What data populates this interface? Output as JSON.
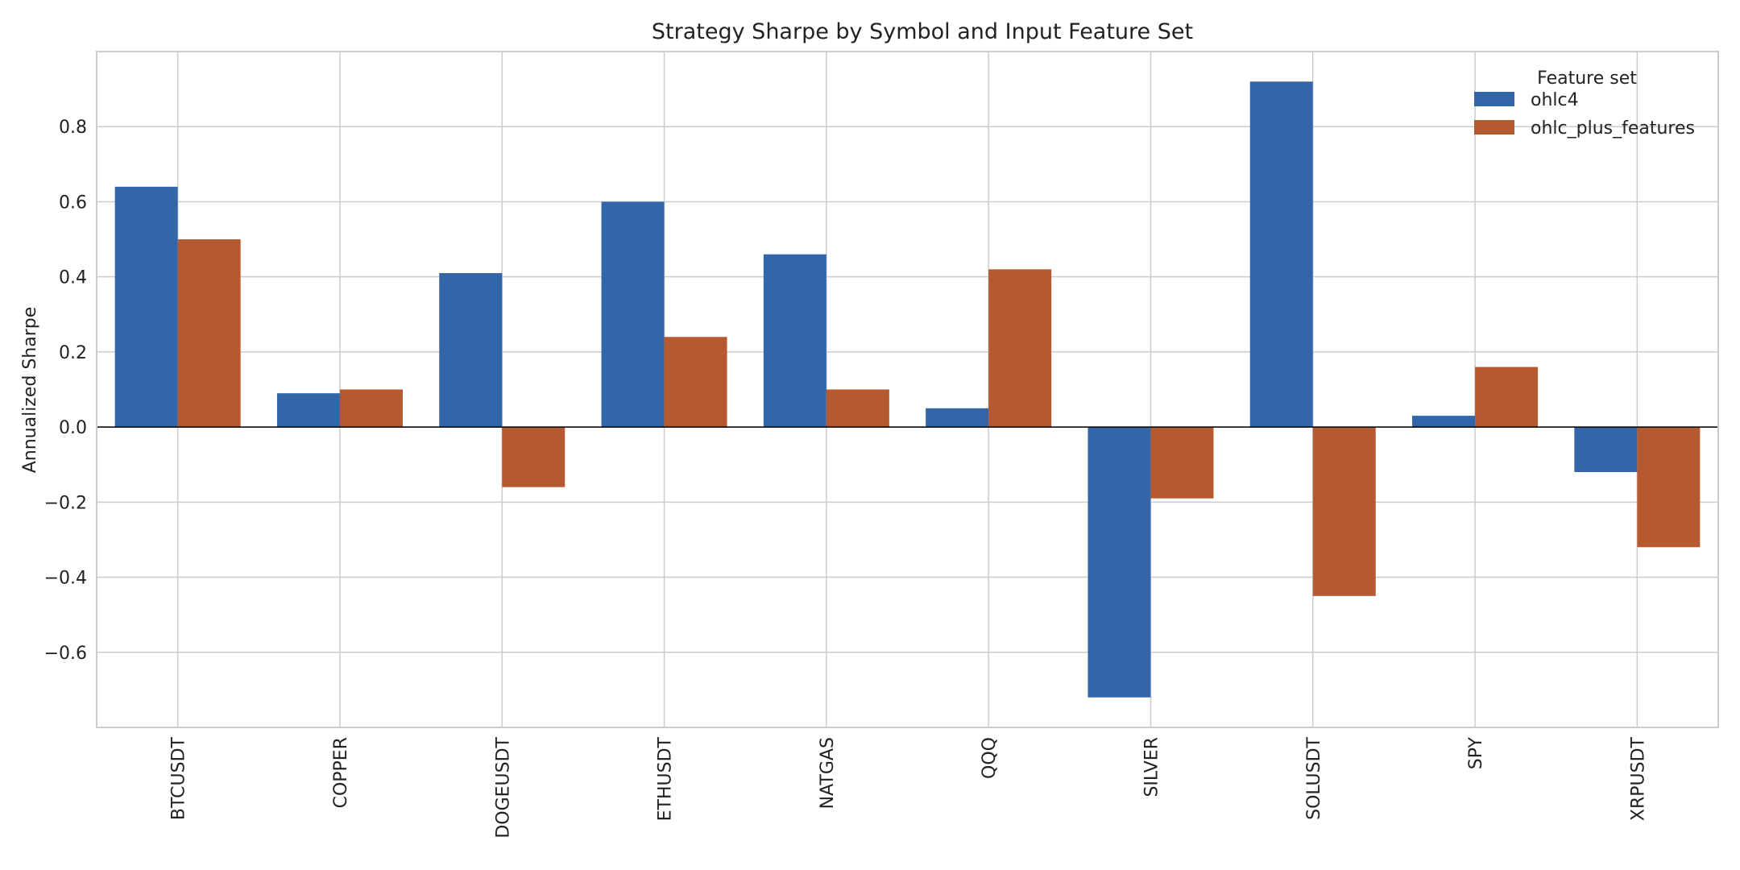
{
  "chart_data": {
    "type": "bar",
    "title": "Strategy Sharpe by Symbol and Input Feature Set",
    "xlabel": "",
    "ylabel": "Annualized Sharpe",
    "categories": [
      "BTCUSDT",
      "COPPER",
      "DOGEUSDT",
      "ETHUSDT",
      "NATGAS",
      "QQQ",
      "SILVER",
      "SOLUSDT",
      "SPY",
      "XRPUSDT"
    ],
    "series": [
      {
        "name": "ohlc4",
        "color": "#3366a8",
        "values": [
          0.64,
          0.09,
          0.41,
          0.6,
          0.46,
          0.05,
          -0.72,
          0.92,
          0.03,
          -0.12
        ]
      },
      {
        "name": "ohlc_plus_features",
        "color": "#b55a30",
        "values": [
          0.5,
          0.1,
          -0.16,
          0.24,
          0.1,
          0.42,
          -0.19,
          -0.45,
          0.16,
          -0.32
        ]
      }
    ],
    "ylim": [
      -0.8,
      1.0
    ],
    "yticks": [
      -0.6,
      -0.4,
      -0.2,
      0.0,
      0.2,
      0.4,
      0.6,
      0.8
    ],
    "ytick_labels": [
      "−0.6",
      "−0.4",
      "−0.2",
      "0.0",
      "0.2",
      "0.4",
      "0.6",
      "0.8"
    ],
    "grid": true,
    "legend": {
      "title": "Feature set",
      "position": "top-right"
    }
  }
}
